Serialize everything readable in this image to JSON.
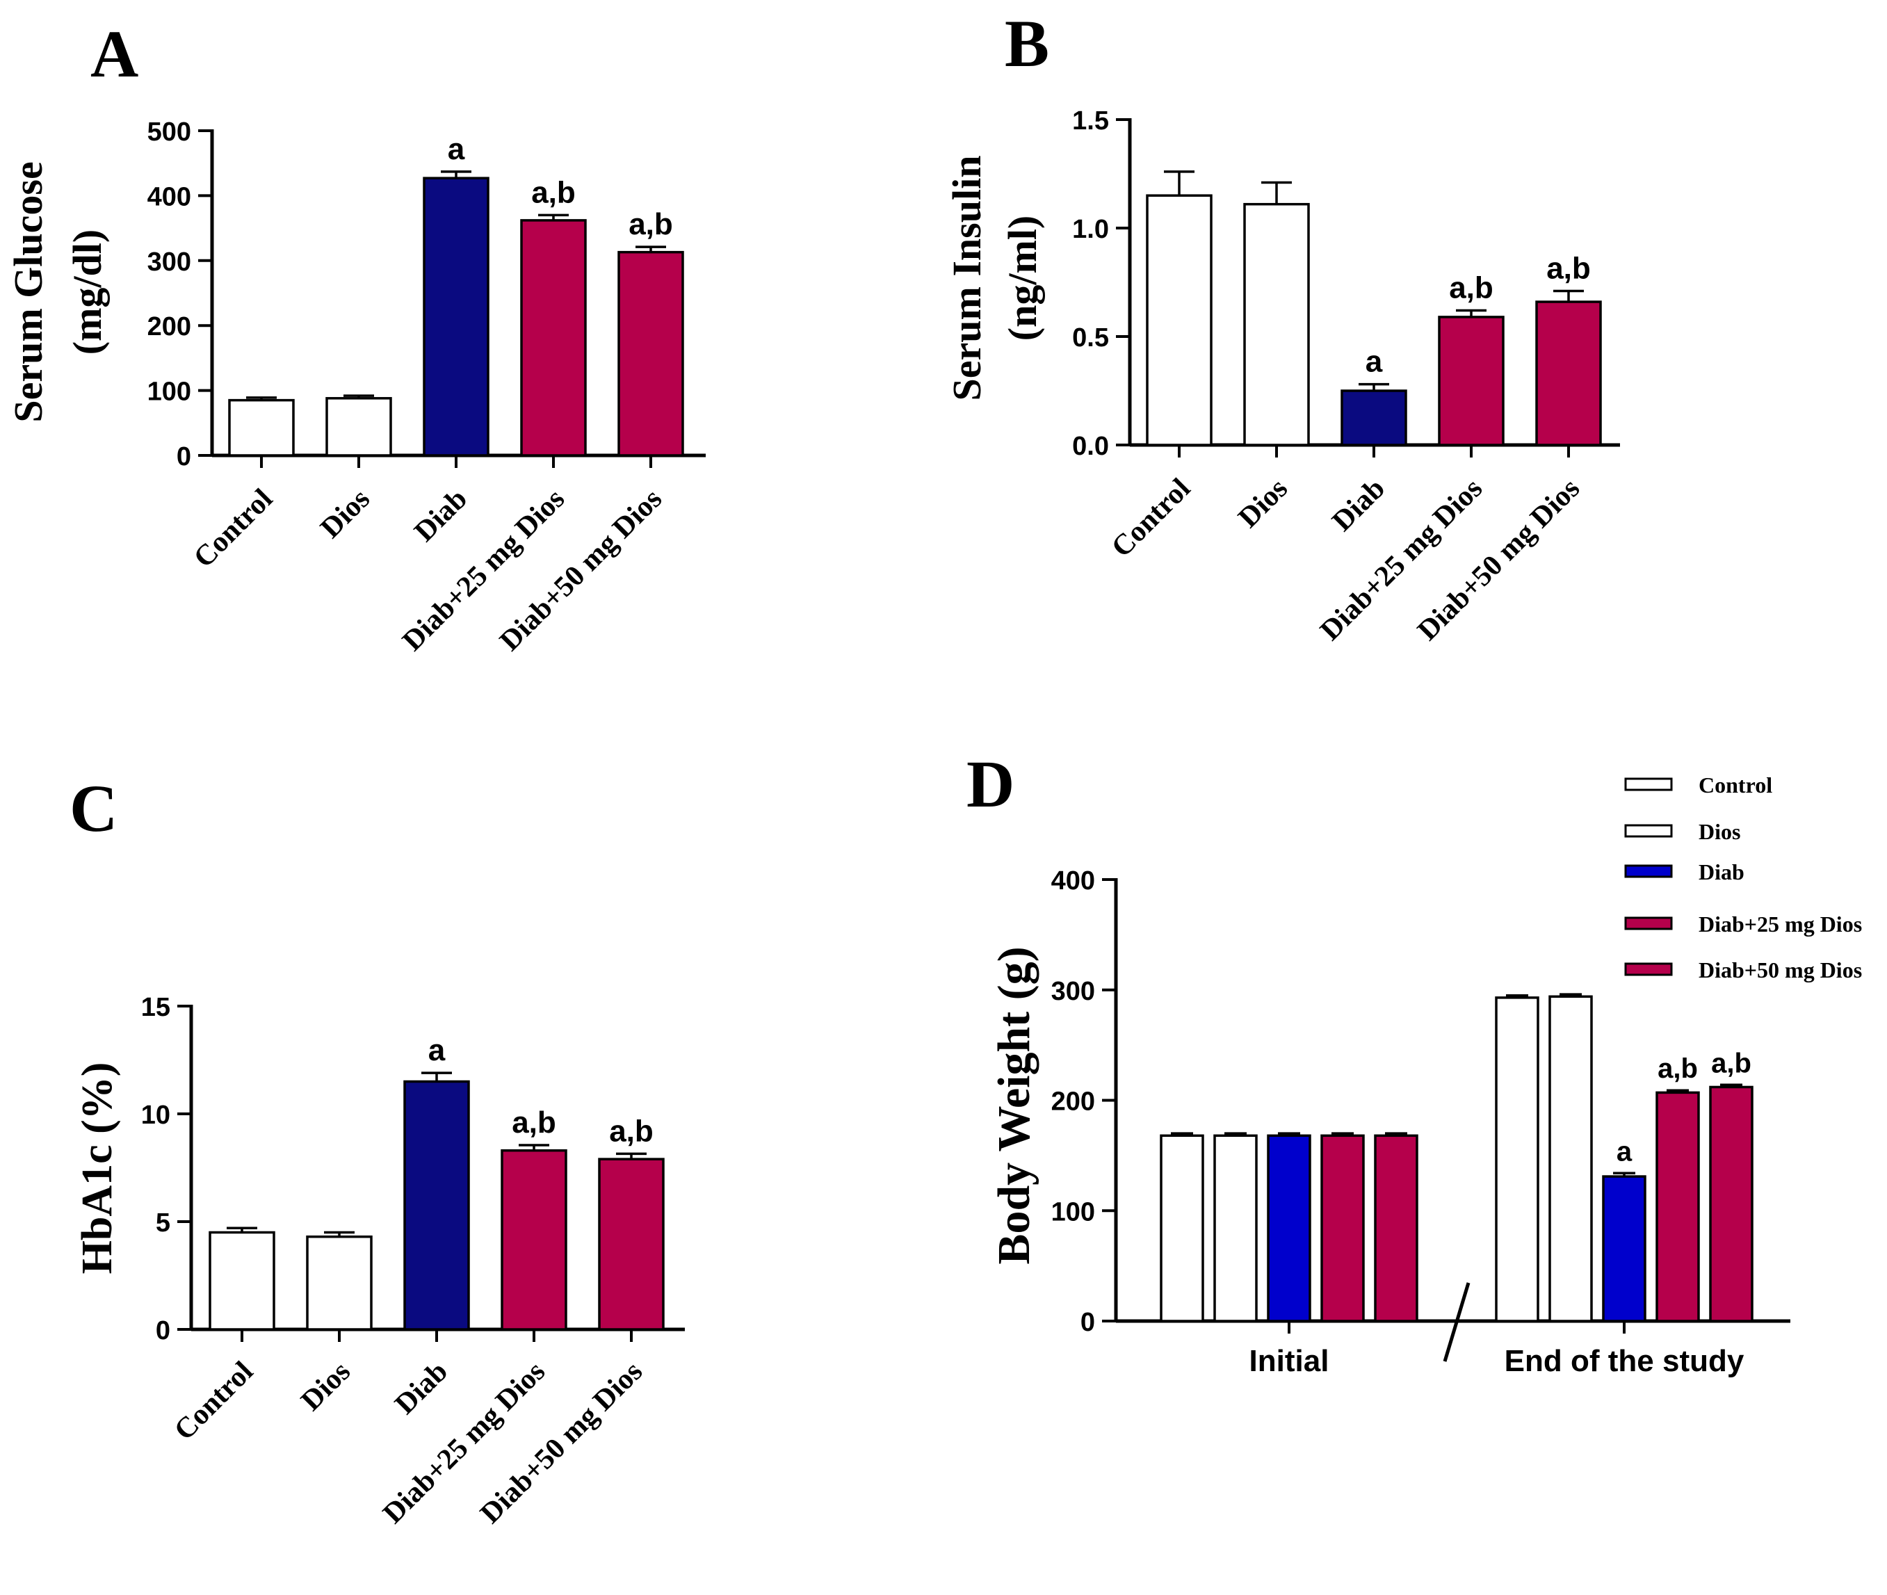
{
  "colors": {
    "Control": "#ffffff",
    "Dios": "#ffffff",
    "Diab": "#0a0a80",
    "Diab+25 mg Dios": "#b5004b",
    "Diab+50 mg Dios": "#b5004b",
    "d_diab": "#0000cc",
    "d_treated": "#b5004b"
  },
  "chart_data": [
    {
      "panel": "A",
      "type": "bar",
      "ylabel_line1": "Serum Glucose",
      "ylabel_line2": "(mg/dl)",
      "ylim": [
        0,
        500
      ],
      "yticks": [
        "0",
        "100",
        "200",
        "300",
        "400",
        "500"
      ],
      "categories": [
        "Control",
        "Dios",
        "Diab",
        "Diab+25 mg Dios",
        "Diab+50 mg Dios"
      ],
      "values": [
        85,
        88,
        427,
        362,
        313
      ],
      "errors": [
        4,
        4,
        10,
        8,
        8
      ],
      "annotations": [
        "",
        "",
        "a",
        "a,b",
        "a,b"
      ]
    },
    {
      "panel": "B",
      "type": "bar",
      "ylabel_line1": "Serum Insulin",
      "ylabel_line2": "(ng/ml)",
      "ylim": [
        0,
        1.5
      ],
      "yticks": [
        "0.0",
        "0.5",
        "1.0",
        "1.5"
      ],
      "categories": [
        "Control",
        "Dios",
        "Diab",
        "Diab+25 mg Dios",
        "Diab+50 mg Dios"
      ],
      "values": [
        1.15,
        1.11,
        0.25,
        0.59,
        0.66
      ],
      "errors": [
        0.11,
        0.1,
        0.03,
        0.03,
        0.05
      ],
      "annotations": [
        "",
        "",
        "a",
        "a,b",
        "a,b"
      ]
    },
    {
      "panel": "C",
      "type": "bar",
      "ylabel_line1": "HbA1c (%)",
      "ylabel_line2": "",
      "ylim": [
        0,
        15
      ],
      "yticks": [
        "0",
        "5",
        "10",
        "15"
      ],
      "categories": [
        "Control",
        "Dios",
        "Diab",
        "Diab+25 mg Dios",
        "Diab+50 mg Dios"
      ],
      "values": [
        4.5,
        4.3,
        11.5,
        8.3,
        7.9
      ],
      "errors": [
        0.2,
        0.2,
        0.4,
        0.25,
        0.25
      ],
      "annotations": [
        "",
        "",
        "a",
        "a,b",
        "a,b"
      ]
    },
    {
      "panel": "D",
      "type": "bar",
      "ylabel": "Body Weight (g)",
      "ylim": [
        0,
        400
      ],
      "yticks": [
        "0",
        "100",
        "200",
        "300",
        "400"
      ],
      "groups": [
        "Initial",
        "End of the study"
      ],
      "series": [
        {
          "name": "Control",
          "values": [
            168,
            293
          ],
          "errors": [
            2,
            2
          ]
        },
        {
          "name": "Dios",
          "values": [
            168,
            294
          ],
          "errors": [
            2,
            2
          ]
        },
        {
          "name": "Diab",
          "values": [
            168,
            131
          ],
          "errors": [
            2,
            3
          ]
        },
        {
          "name": "Diab+25 mg Dios",
          "values": [
            168,
            207
          ],
          "errors": [
            2,
            2
          ]
        },
        {
          "name": "Diab+50 mg Dios",
          "values": [
            168,
            212
          ],
          "errors": [
            2,
            2
          ]
        }
      ],
      "annotations": [
        [
          "",
          "",
          "",
          "",
          ""
        ],
        [
          "",
          "",
          "a",
          "a,b",
          "a,b"
        ]
      ],
      "legend_position": "top-right"
    }
  ]
}
